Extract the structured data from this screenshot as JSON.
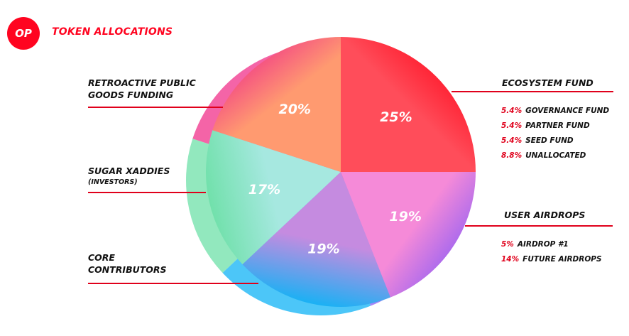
{
  "header": {
    "logo_text": "OP",
    "title": "TOKEN ALLOCATIONS"
  },
  "colors": {
    "brand": "#ff0420",
    "line": "#e0001b"
  },
  "chart_data": {
    "type": "pie",
    "title": "TOKEN ALLOCATIONS",
    "slices": [
      {
        "name": "ECOSYSTEM FUND",
        "value": 25,
        "label": "25%",
        "color_start": "#ff0a1e",
        "color_end": "#ff4d5a"
      },
      {
        "name": "USER AIRDROPS",
        "value": 19,
        "label": "19%",
        "color_start": "#8b5cf6",
        "color_end": "#f58ad8"
      },
      {
        "name": "CORE CONTRIBUTORS",
        "value": 19,
        "label": "19%",
        "color_start": "#10b3f5",
        "color_end": "#c58be0"
      },
      {
        "name": "SUGAR XADDIES",
        "value": 17,
        "label": "17%",
        "color_start": "#6ee0a8",
        "color_end": "#a6e8e0"
      },
      {
        "name": "RETROACTIVE PUBLIC GOODS FUNDING",
        "value": 20,
        "label": "20%",
        "color_start": "#f0308a",
        "color_end": "#ff9a70"
      }
    ]
  },
  "labels": {
    "ecosystem": "ECOSYSTEM FUND",
    "ecosystem_breakdown": [
      {
        "pct": "5.4%",
        "text": "GOVERNANCE FUND"
      },
      {
        "pct": "5.4%",
        "text": "PARTNER FUND"
      },
      {
        "pct": "5.4%",
        "text": "SEED FUND"
      },
      {
        "pct": "8.8%",
        "text": "UNALLOCATED"
      }
    ],
    "user_airdrops": "USER AIRDROPS",
    "airdrop_breakdown": [
      {
        "pct": "5%",
        "text": "AIRDROP #1"
      },
      {
        "pct": "14%",
        "text": "FUTURE AIRDROPS"
      }
    ],
    "retro_line1": "RETROACTIVE PUBLIC",
    "retro_line2": "GOODS FUNDING",
    "sugar": "SUGAR XADDIES",
    "sugar_sub": "(INVESTORS)",
    "core_line1": "CORE",
    "core_line2": "CONTRIBUTORS"
  }
}
